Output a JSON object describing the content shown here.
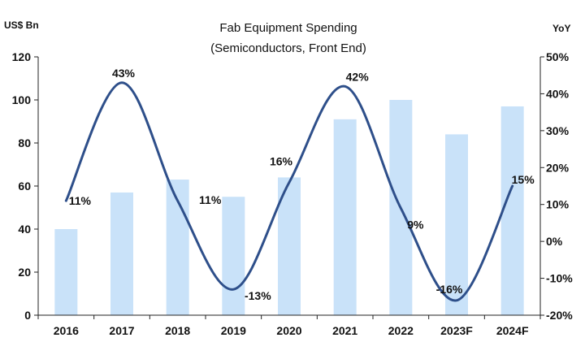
{
  "chart_data": {
    "type": "bar+line",
    "title": "Fab Equipment Spending",
    "subtitle": "(Semiconductors, Front End)",
    "ylabel_left": "US$ Bn",
    "ylabel_right": "YoY",
    "categories": [
      "2016",
      "2017",
      "2018",
      "2019",
      "2020",
      "2021",
      "2022",
      "2023F",
      "2024F"
    ],
    "ylim_left": [
      0,
      120
    ],
    "yticks_left": [
      "0",
      "20",
      "40",
      "60",
      "80",
      "100",
      "120"
    ],
    "ylim_right": [
      -20,
      50
    ],
    "yticks_right": [
      "-20%",
      "-10%",
      "0%",
      "10%",
      "20%",
      "30%",
      "40%",
      "50%"
    ],
    "series": [
      {
        "name": "Fab Equipment Spending",
        "type": "bar",
        "axis": "left",
        "color": "#c9e2f9",
        "values": [
          40,
          57,
          63,
          55,
          64,
          91,
          100,
          84,
          97
        ]
      },
      {
        "name": "YoY",
        "type": "line",
        "axis": "right",
        "color": "#2e4f8a",
        "smooth": true,
        "values": [
          11,
          43,
          11,
          -13,
          16,
          42,
          9,
          -16,
          15
        ],
        "labels": [
          "11%",
          "43%",
          "11%",
          "-13%",
          "16%",
          "42%",
          "9%",
          "-16%",
          "15%"
        ]
      }
    ]
  }
}
